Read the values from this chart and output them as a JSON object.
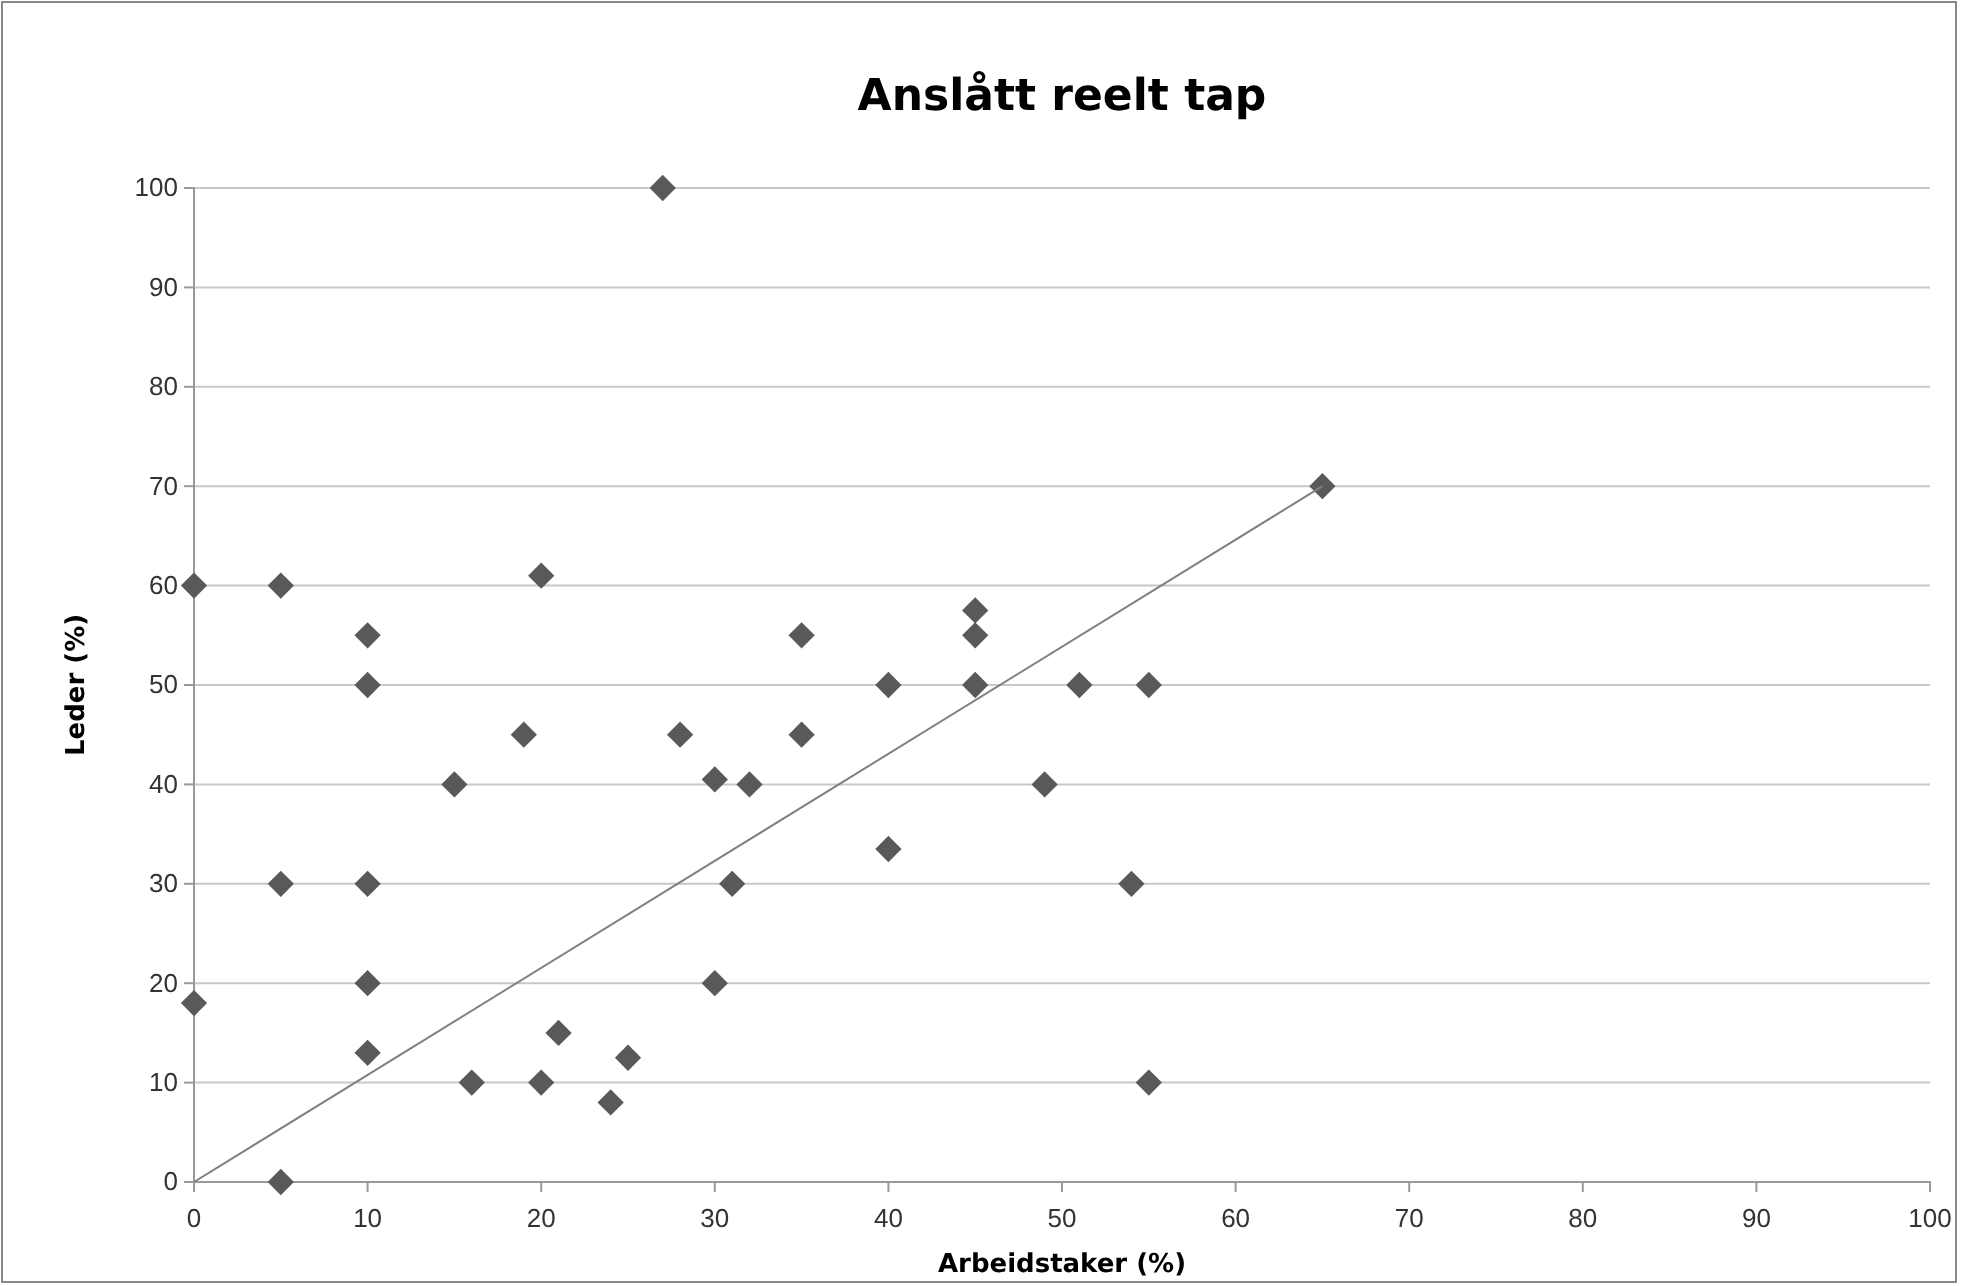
{
  "chart_data": {
    "type": "scatter",
    "title": "Anslått reelt tap",
    "xlabel": "Arbeidstaker (%)",
    "ylabel": "Leder (%)",
    "xlim": [
      0,
      100
    ],
    "xticks": [
      0,
      10,
      20,
      30,
      40,
      50,
      60,
      70,
      80,
      90,
      100
    ],
    "ylim": [
      0,
      100
    ],
    "yticks": [
      0,
      10,
      20,
      30,
      40,
      50,
      60,
      70,
      80,
      90,
      100
    ],
    "grid": "y",
    "series": [
      {
        "marker": "diamond",
        "color": "#595959",
        "x": [
          0,
          0,
          5,
          5,
          5,
          10,
          10,
          10,
          10,
          10,
          15,
          16,
          19,
          20,
          20,
          21,
          24,
          25,
          27,
          28,
          30,
          30,
          31,
          32,
          35,
          35,
          40,
          40,
          45,
          45,
          45,
          49,
          51,
          54,
          55,
          55,
          65
        ],
        "values": [
          60,
          18,
          60,
          30,
          0,
          55,
          50,
          30,
          20,
          13,
          40,
          10,
          45,
          61,
          10,
          15,
          8,
          12.5,
          100,
          45,
          40.5,
          20,
          30,
          40,
          55,
          45,
          50,
          33.5,
          57.5,
          55,
          50,
          40,
          50,
          30,
          50,
          10,
          70
        ]
      },
      {
        "type": "line",
        "marker": "none",
        "line_style": "solid",
        "color": "#808080",
        "x": [
          0,
          65
        ],
        "values": [
          0,
          70
        ]
      }
    ]
  }
}
